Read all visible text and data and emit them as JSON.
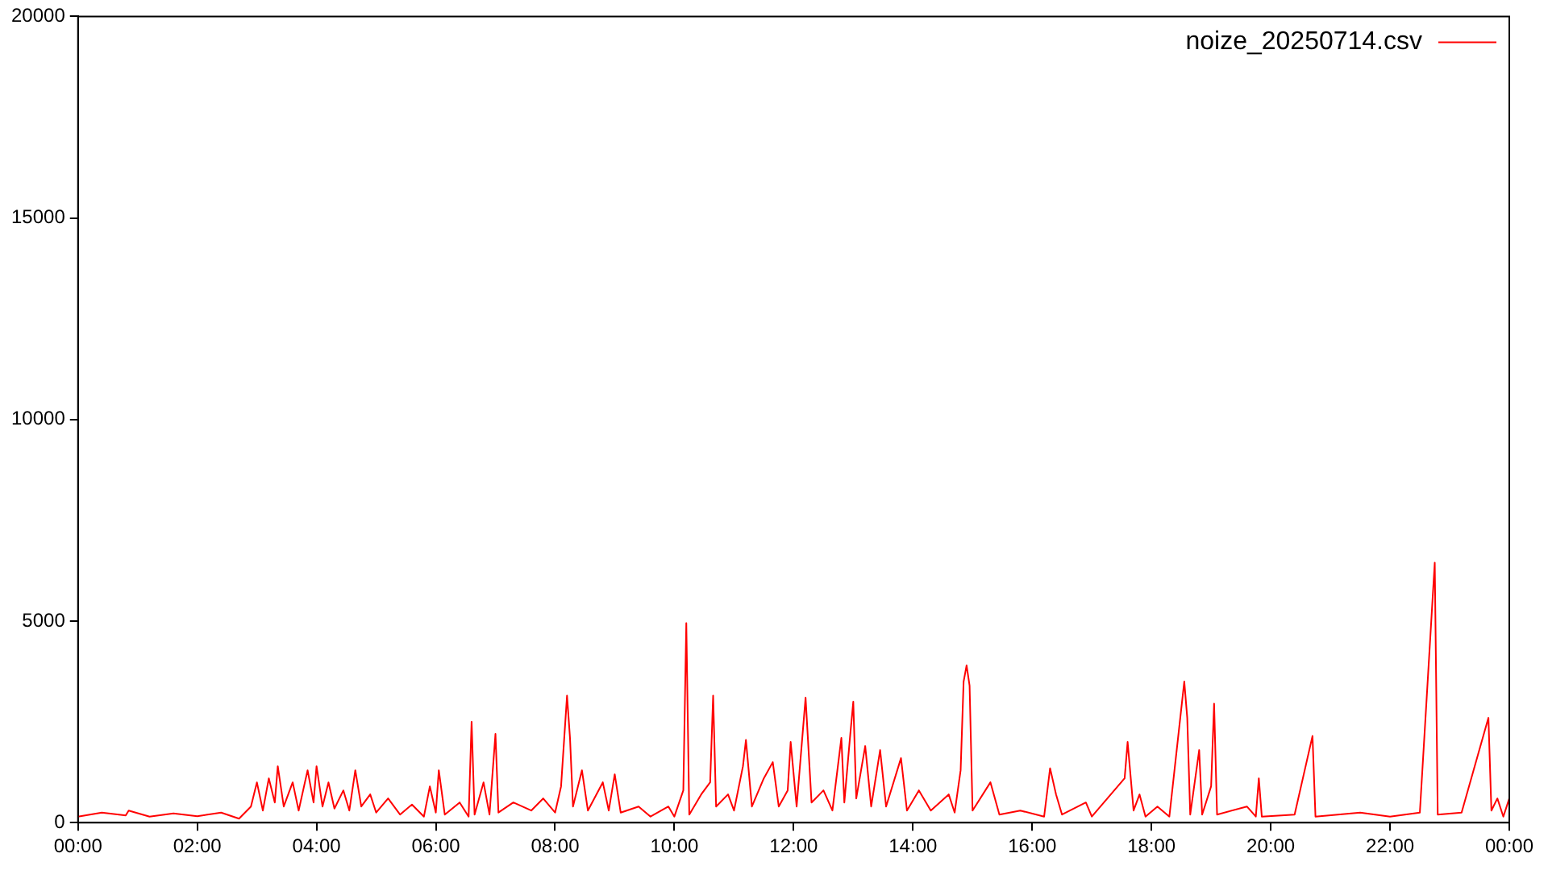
{
  "chart_data": {
    "type": "line",
    "legend": "top right",
    "grid": false,
    "marker": "none",
    "line_style": "solid",
    "xlim": [
      0,
      24
    ],
    "xticks": [
      {
        "value": 0,
        "label": "00:00"
      },
      {
        "value": 2,
        "label": "02:00"
      },
      {
        "value": 4,
        "label": "04:00"
      },
      {
        "value": 6,
        "label": "06:00"
      },
      {
        "value": 8,
        "label": "08:00"
      },
      {
        "value": 10,
        "label": "10:00"
      },
      {
        "value": 12,
        "label": "12:00"
      },
      {
        "value": 14,
        "label": "14:00"
      },
      {
        "value": 16,
        "label": "16:00"
      },
      {
        "value": 18,
        "label": "18:00"
      },
      {
        "value": 20,
        "label": "20:00"
      },
      {
        "value": 22,
        "label": "22:00"
      },
      {
        "value": 24,
        "label": "00:00"
      }
    ],
    "ylim": [
      0,
      20000
    ],
    "yticks": [
      0,
      5000,
      10000,
      15000,
      20000
    ],
    "series": [
      {
        "name": "noize_20250714.csv",
        "color": "#ff0000",
        "x": [
          0,
          0.4,
          0.8,
          0.85,
          1.2,
          1.6,
          2.0,
          2.4,
          2.7,
          2.9,
          3.0,
          3.1,
          3.2,
          3.3,
          3.35,
          3.45,
          3.6,
          3.7,
          3.85,
          3.95,
          4.0,
          4.1,
          4.2,
          4.3,
          4.45,
          4.55,
          4.65,
          4.75,
          4.9,
          5.0,
          5.2,
          5.4,
          5.6,
          5.8,
          5.9,
          6.0,
          6.05,
          6.15,
          6.4,
          6.55,
          6.6,
          6.65,
          6.8,
          6.9,
          7.0,
          7.05,
          7.3,
          7.6,
          7.8,
          8.0,
          8.1,
          8.2,
          8.25,
          8.3,
          8.45,
          8.55,
          8.8,
          8.9,
          9.0,
          9.1,
          9.4,
          9.6,
          9.9,
          10.0,
          10.15,
          10.2,
          10.25,
          10.45,
          10.6,
          10.65,
          10.7,
          10.9,
          11.0,
          11.15,
          11.2,
          11.3,
          11.5,
          11.65,
          11.75,
          11.9,
          11.95,
          12.05,
          12.2,
          12.3,
          12.5,
          12.65,
          12.8,
          12.85,
          12.95,
          13.0,
          13.05,
          13.2,
          13.3,
          13.45,
          13.55,
          13.8,
          13.9,
          14.1,
          14.3,
          14.6,
          14.7,
          14.8,
          14.85,
          14.9,
          14.95,
          15.0,
          15.3,
          15.45,
          15.8,
          16.2,
          16.3,
          16.4,
          16.5,
          16.9,
          17.0,
          17.55,
          17.6,
          17.7,
          17.8,
          17.9,
          18.1,
          18.3,
          18.55,
          18.6,
          18.65,
          18.8,
          18.85,
          19.0,
          19.05,
          19.1,
          19.6,
          19.75,
          19.8,
          19.85,
          20.4,
          20.7,
          20.75,
          21.5,
          22.0,
          22.5,
          22.75,
          22.8,
          23.2,
          23.65,
          23.7,
          23.8,
          23.9,
          24
        ],
        "values": [
          150,
          250,
          180,
          300,
          150,
          230,
          160,
          250,
          100,
          400,
          1000,
          300,
          1100,
          500,
          1400,
          400,
          1000,
          300,
          1300,
          500,
          1400,
          400,
          1000,
          350,
          800,
          300,
          1300,
          400,
          700,
          250,
          600,
          200,
          450,
          150,
          900,
          250,
          1300,
          200,
          500,
          150,
          2500,
          200,
          1000,
          200,
          2200,
          250,
          500,
          300,
          600,
          250,
          900,
          3150,
          2100,
          400,
          1300,
          300,
          1000,
          300,
          1200,
          250,
          400,
          150,
          400,
          150,
          800,
          4950,
          200,
          700,
          1000,
          3150,
          400,
          700,
          300,
          1400,
          2050,
          400,
          1100,
          1500,
          400,
          800,
          2000,
          400,
          3100,
          500,
          800,
          300,
          2100,
          500,
          2200,
          3000,
          600,
          1900,
          400,
          1800,
          400,
          1600,
          300,
          800,
          300,
          700,
          250,
          1300,
          3500,
          3900,
          3400,
          300,
          1000,
          200,
          300,
          150,
          1350,
          700,
          200,
          500,
          150,
          1100,
          2000,
          300,
          700,
          150,
          400,
          150,
          3500,
          2600,
          200,
          1800,
          200,
          900,
          2950,
          200,
          400,
          150,
          1100,
          150,
          200,
          2150,
          150,
          250,
          150,
          250,
          6450,
          200,
          250,
          2600,
          300,
          600,
          150,
          600
        ]
      }
    ]
  }
}
